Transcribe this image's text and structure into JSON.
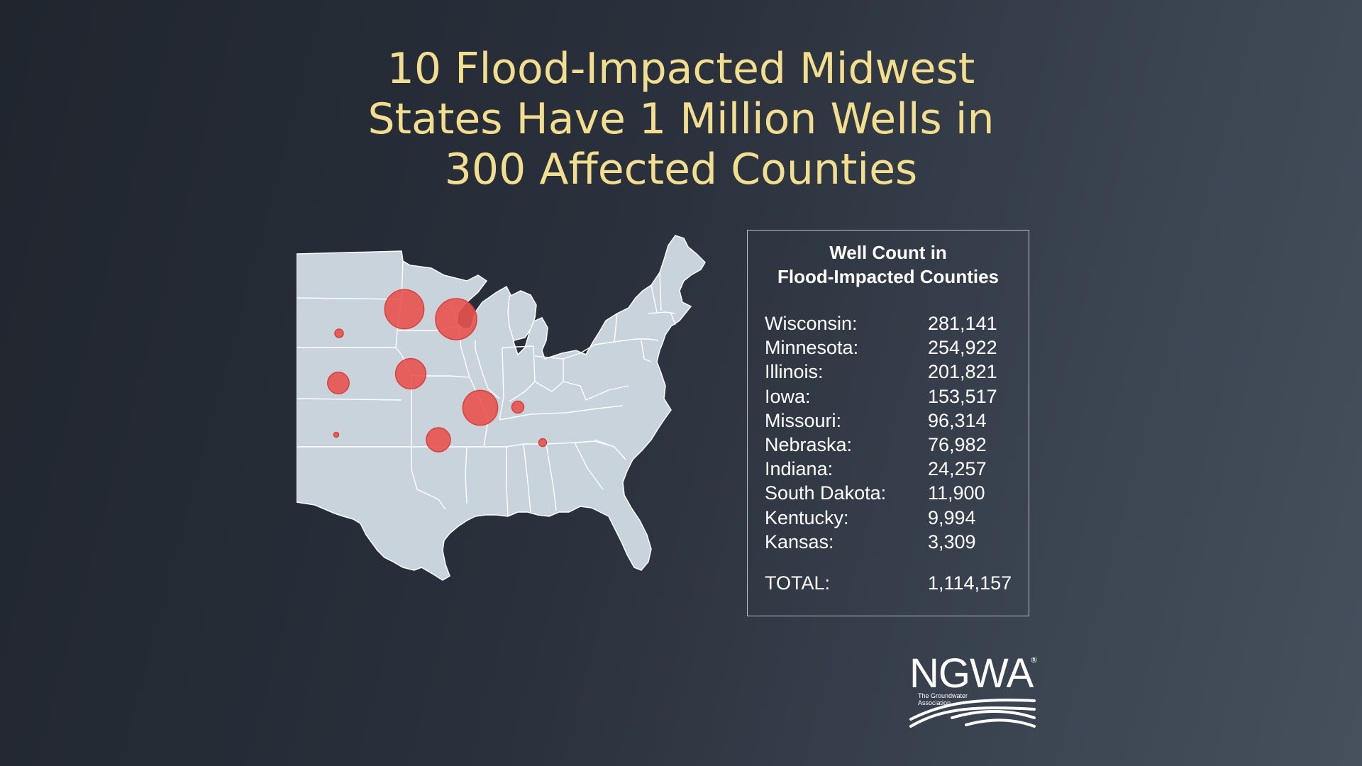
{
  "title": {
    "lines": [
      "10 Flood-Impacted Midwest",
      "States Have 1 Million Wells in",
      "300 Affected Counties"
    ]
  },
  "map": {
    "land_color": "#c8d3dc",
    "border_color": "#ffffff",
    "marker_color": "#e8534f",
    "markers": [
      {
        "state": "Minnesota",
        "wells": 254922
      },
      {
        "state": "Wisconsin",
        "wells": 281141
      },
      {
        "state": "South Dakota",
        "wells": 11900
      },
      {
        "state": "Nebraska",
        "wells": 76982
      },
      {
        "state": "Iowa",
        "wells": 153517
      },
      {
        "state": "Illinois",
        "wells": 201821
      },
      {
        "state": "Indiana",
        "wells": 24257
      },
      {
        "state": "Kansas",
        "wells": 3309
      },
      {
        "state": "Missouri",
        "wells": 96314
      },
      {
        "state": "Kentucky",
        "wells": 9994
      }
    ]
  },
  "legend": {
    "title_lines": [
      "Well Count in",
      "Flood-Impacted Counties"
    ],
    "rows": [
      {
        "label": "Wisconsin:",
        "value": "281,141"
      },
      {
        "label": "Minnesota:",
        "value": "254,922"
      },
      {
        "label": "Illinois:",
        "value": "201,821"
      },
      {
        "label": "Iowa:",
        "value": "153,517"
      },
      {
        "label": "Missouri:",
        "value": "96,314"
      },
      {
        "label": "Nebraska:",
        "value": "76,982"
      },
      {
        "label": "Indiana:",
        "value": "24,257"
      },
      {
        "label": "South Dakota:",
        "value": "11,900"
      },
      {
        "label": "Kentucky:",
        "value": "9,994"
      },
      {
        "label": "Kansas:",
        "value": "3,309"
      }
    ],
    "total": {
      "label": "TOTAL:",
      "value": "1,114,157"
    }
  },
  "logo": {
    "name": "NGWA",
    "registered": "®",
    "tagline_lines": [
      "The Groundwater",
      "Association"
    ]
  }
}
